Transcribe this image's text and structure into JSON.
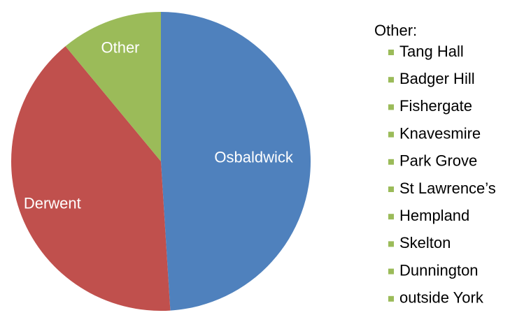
{
  "chart_data": {
    "type": "pie",
    "categories": [
      "Osbaldwick",
      "Derwent",
      "Other"
    ],
    "values": [
      49,
      40,
      11
    ],
    "colors": [
      "#4f81bd",
      "#c0504d",
      "#9bbb59"
    ],
    "other_breakdown": {
      "title": "Other:",
      "items": [
        "Tang Hall",
        "Badger Hill",
        "Fishergate",
        "Knavesmire",
        "Park Grove",
        "St Lawrence’s",
        "Hempland",
        "Skelton",
        "Dunnington",
        "outside York"
      ],
      "color": "#9bbb59"
    }
  }
}
